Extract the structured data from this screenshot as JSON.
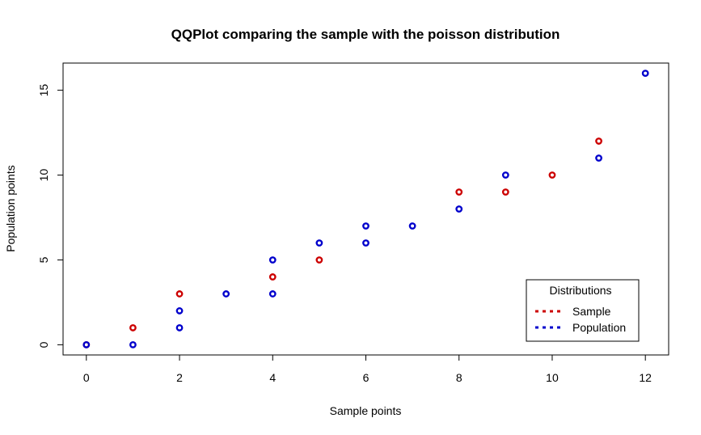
{
  "chart_data": {
    "type": "scatter",
    "title": "QQPlot comparing the sample with the poisson distribution",
    "xlabel": "Sample points",
    "ylabel": "Population points",
    "xlim": [
      -0.5,
      12.5
    ],
    "ylim": [
      -0.6,
      16.6
    ],
    "x_ticks": [
      0,
      2,
      4,
      6,
      8,
      10,
      12
    ],
    "y_ticks": [
      0,
      5,
      10,
      15
    ],
    "grid": false,
    "legend": {
      "title": "Distributions",
      "position": "bottom-right"
    },
    "series": [
      {
        "name": "Sample",
        "color": "#cc0000",
        "points": [
          [
            0,
            0
          ],
          [
            1,
            1
          ],
          [
            2,
            3
          ],
          [
            4,
            4
          ],
          [
            5,
            5
          ],
          [
            8,
            9
          ],
          [
            9,
            9
          ],
          [
            10,
            10
          ],
          [
            11,
            12
          ]
        ]
      },
      {
        "name": "Population",
        "color": "#0000cc",
        "points": [
          [
            0,
            0
          ],
          [
            1,
            0
          ],
          [
            2,
            1
          ],
          [
            2,
            2
          ],
          [
            3,
            3
          ],
          [
            4,
            3
          ],
          [
            4,
            5
          ],
          [
            5,
            6
          ],
          [
            6,
            6
          ],
          [
            6,
            7
          ],
          [
            7,
            7
          ],
          [
            8,
            8
          ],
          [
            9,
            10
          ],
          [
            11,
            11
          ],
          [
            12,
            16
          ]
        ]
      }
    ]
  }
}
